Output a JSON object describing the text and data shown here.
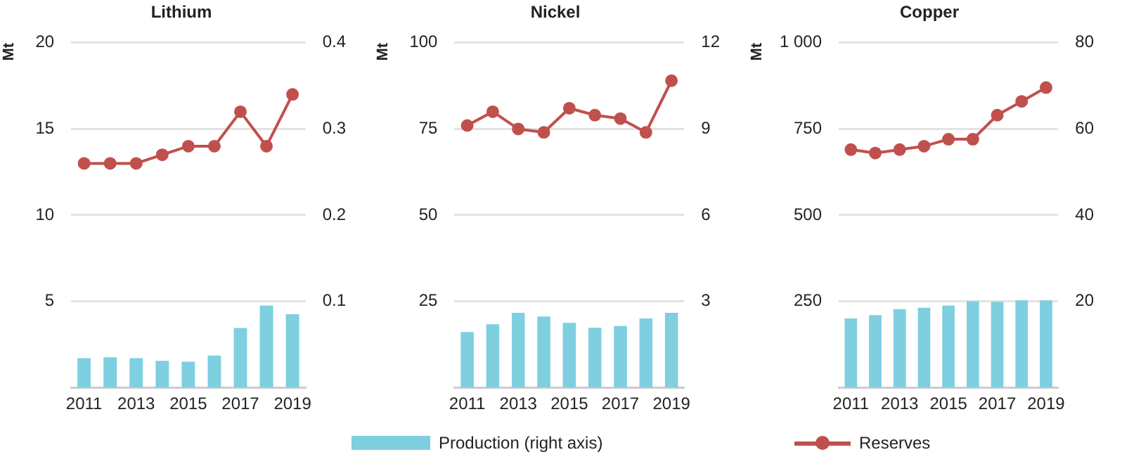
{
  "chart_data": [
    {
      "type": "line",
      "title": "Lithium",
      "ylabel": "Mt",
      "categories": [
        "2011",
        null,
        "2013",
        null,
        "2015",
        null,
        "2017",
        null,
        "2019"
      ],
      "legend": "bottom",
      "grid": "y",
      "marker": "circle",
      "ylim": [
        0,
        20
      ],
      "yticks": [
        5,
        10,
        15,
        20
      ],
      "y2lim": [
        0,
        0.4
      ],
      "y2ticks": [
        0.1,
        0.2,
        0.3,
        0.4
      ],
      "series": [
        {
          "name": "Production (right axis)",
          "type": "bar",
          "axis": "y2",
          "color": "#7ecfe0",
          "values": [
            0.034,
            0.035,
            0.034,
            0.031,
            0.03,
            0.037,
            0.069,
            0.095,
            0.085
          ]
        },
        {
          "name": "Reserves",
          "color": "#c0504d",
          "values": [
            13,
            13,
            13,
            13.5,
            14,
            14,
            16,
            14,
            17
          ]
        }
      ]
    },
    {
      "type": "line",
      "title": "Nickel",
      "ylabel": "Mt",
      "categories": [
        "2011",
        null,
        "2013",
        null,
        "2015",
        null,
        "2017",
        null,
        "2019"
      ],
      "grid": "y",
      "marker": "circle",
      "ylim": [
        0,
        100
      ],
      "yticks": [
        25,
        50,
        75,
        100
      ],
      "y2lim": [
        0,
        12
      ],
      "y2ticks": [
        3,
        6,
        9,
        12
      ],
      "series": [
        {
          "type": "bar",
          "axis": "y2",
          "color": "#7ecfe0",
          "values": [
            1.93,
            2.2,
            2.6,
            2.47,
            2.25,
            2.08,
            2.14,
            2.4,
            2.6
          ]
        },
        {
          "color": "#c0504d",
          "values": [
            76,
            80,
            75,
            74,
            81,
            79,
            78,
            74,
            89
          ]
        }
      ]
    },
    {
      "type": "line",
      "title": "Copper",
      "ylabel": "Mt",
      "categories": [
        "2011",
        null,
        "2013",
        null,
        "2015",
        null,
        "2017",
        null,
        "2019"
      ],
      "grid": "y",
      "marker": "circle",
      "ylim": [
        0,
        1000
      ],
      "yticks": [
        250,
        500,
        750,
        {
          "value": 1000,
          "label": "1 000"
        }
      ],
      "y2lim": [
        0,
        80
      ],
      "y2ticks": [
        20,
        40,
        60,
        80
      ],
      "series": [
        {
          "type": "bar",
          "axis": "y2",
          "color": "#7ecfe0",
          "values": [
            16.0,
            16.8,
            18.2,
            18.5,
            19.0,
            20.0,
            19.9,
            20.2,
            20.2
          ]
        },
        {
          "color": "#c0504d",
          "values": [
            690,
            680,
            690,
            700,
            720,
            720,
            790,
            830,
            870
          ]
        }
      ]
    }
  ]
}
